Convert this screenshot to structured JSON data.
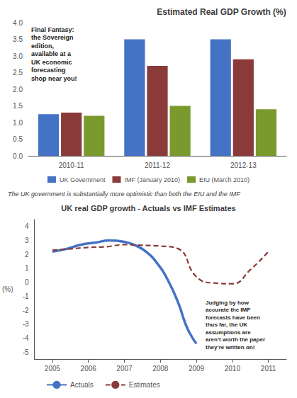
{
  "chart_data": [
    {
      "type": "bar",
      "title": "Estimated Real GDP Growth (%)",
      "subtitle": "The UK government is substantially more optimistic than both the EIU and the IMF",
      "categories": [
        "2010-11",
        "2011-12",
        "2012-13"
      ],
      "series": [
        {
          "name": "UK Government",
          "color": "#4472C4",
          "values": [
            1.25,
            3.5,
            3.5
          ]
        },
        {
          "name": "IMF (January 2010)",
          "color": "#8B3A3A",
          "values": [
            1.3,
            2.7,
            2.9
          ]
        },
        {
          "name": "EIU (March 2010)",
          "color": "#7A9A2E",
          "values": [
            1.2,
            1.5,
            1.4
          ]
        }
      ],
      "ylim": [
        0.0,
        4.0
      ],
      "yticks": [
        {
          "value": 0,
          "label": "0.0"
        },
        0.5,
        {
          "value": 1,
          "label": "1.0"
        },
        1.5,
        {
          "value": 2,
          "label": "2.0"
        },
        2.5,
        {
          "value": 3,
          "label": "3.0"
        },
        3.5,
        {
          "value": 4,
          "label": "4.0"
        }
      ],
      "annotation": "Final Fantasy:\nthe Sovereign\nedition,\navailable at a\nUK economic\nforecasting\nshop near you!",
      "grid": false,
      "legend": "bottom"
    },
    {
      "type": "line",
      "title": "UK real GDP growth - Actuals vs IMF Estimates",
      "ylabel": "(%)",
      "xlim": [
        2004.5,
        2011.5
      ],
      "xticks": [
        2005,
        2006,
        2007,
        2008,
        2009,
        2010,
        2011
      ],
      "ylim": [
        -5.5,
        4.5
      ],
      "yticks": [
        -5,
        -4,
        -3,
        -2,
        -1,
        0,
        1,
        2,
        3,
        4
      ],
      "series": [
        {
          "name": "Actuals",
          "color": "#4472C4",
          "line_style": "solid",
          "x": [
            2005.0,
            2005.4,
            2005.8,
            2006.2,
            2006.6,
            2007.0,
            2007.3,
            2007.6,
            2007.9,
            2008.2,
            2008.5,
            2008.7,
            2008.85,
            2009.0
          ],
          "values": [
            2.2,
            2.4,
            2.7,
            2.85,
            3.0,
            2.9,
            2.65,
            2.2,
            1.4,
            0.2,
            -1.5,
            -3.0,
            -3.8,
            -4.4
          ]
        },
        {
          "name": "Estimates",
          "color": "#8B3A3A",
          "line_style": "dashed",
          "x": [
            2005.0,
            2005.5,
            2006.0,
            2006.5,
            2007.0,
            2007.5,
            2008.0,
            2008.5,
            2009.0,
            2009.5,
            2010.0,
            2010.5,
            2011.0
          ],
          "values": [
            2.3,
            2.4,
            2.5,
            2.55,
            2.7,
            2.65,
            2.6,
            2.4,
            0.4,
            -0.05,
            -0.1,
            0.9,
            2.2
          ]
        }
      ],
      "annotation": "Judging by how\naccurate the IMF\nforecasts have been\nthus far, the UK\nassumptions are\naren’t worth the paper\nthey’re written on!",
      "grid": false,
      "legend": "bottom"
    }
  ]
}
